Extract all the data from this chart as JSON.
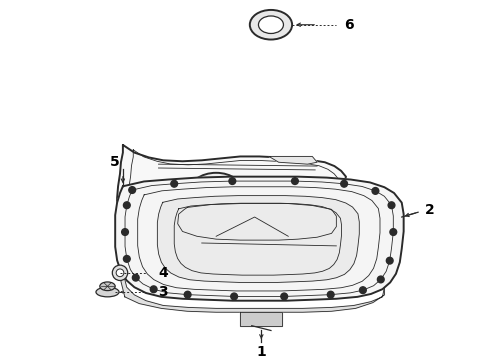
{
  "bg_color": "#ffffff",
  "line_color": "#2a2a2a",
  "label_color": "#000000",
  "fig_width": 4.9,
  "fig_height": 3.6,
  "dpi": 100,
  "label_fontsize": 10,
  "label_fontweight": "bold"
}
